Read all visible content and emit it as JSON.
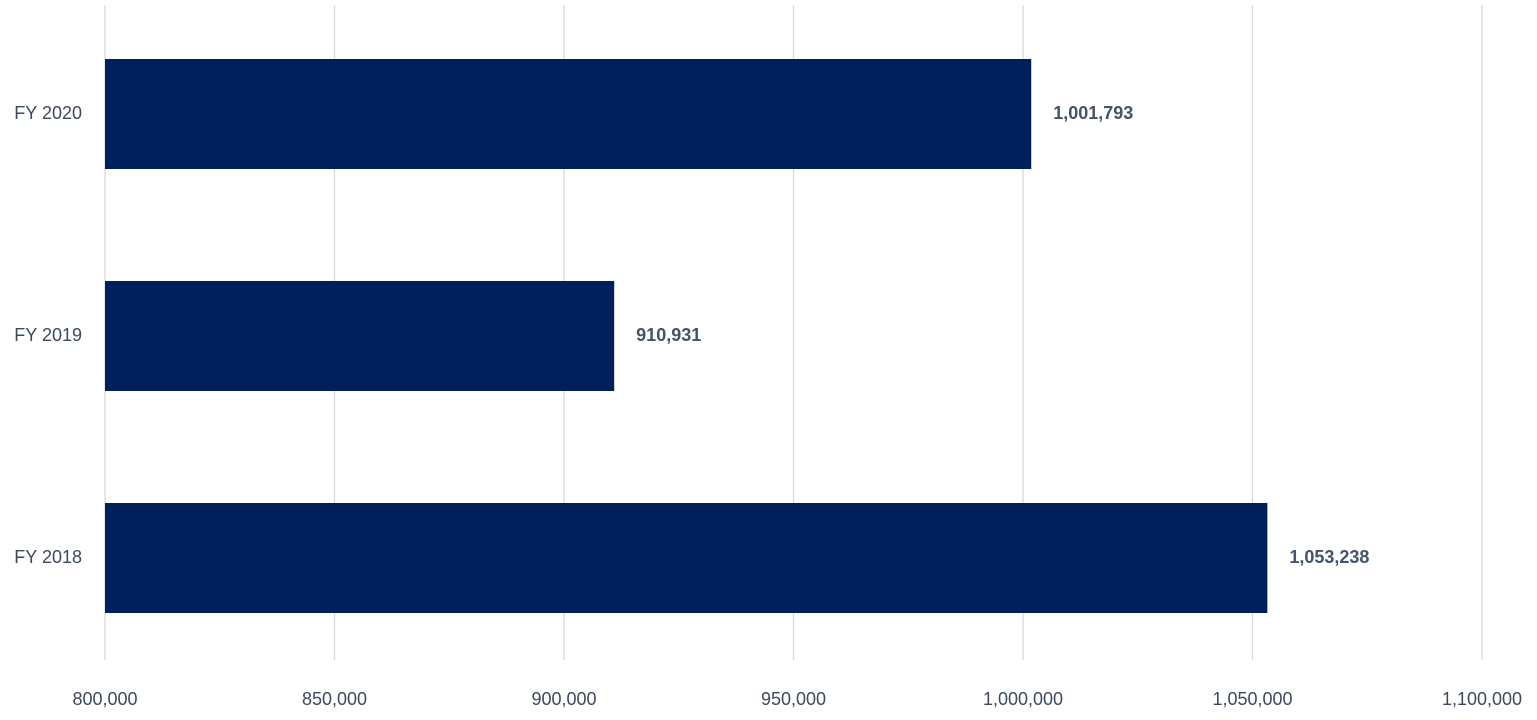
{
  "chart_data": {
    "type": "bar",
    "orientation": "horizontal",
    "categories": [
      "FY 2020",
      "FY 2019",
      "FY 2018"
    ],
    "values": [
      1001793,
      910931,
      1053238
    ],
    "data_labels": [
      "1,001,793",
      "910,931",
      "1,053,238"
    ],
    "xlim": [
      800000,
      1100000
    ],
    "x_ticks": [
      800000,
      850000,
      900000,
      950000,
      1000000,
      1050000,
      1100000
    ],
    "x_tick_labels": [
      "800,000",
      "850,000",
      "900,000",
      "950,000",
      "1,000,000",
      "1,050,000",
      "1,100,000"
    ],
    "title": "",
    "xlabel": "",
    "ylabel": "",
    "grid": "vertical",
    "legend": "none",
    "colors": {
      "bar": "#00205b",
      "grid": "#d9d9d9",
      "tick_text": "#3d4a5c",
      "data_label_text": "#44546a"
    }
  }
}
